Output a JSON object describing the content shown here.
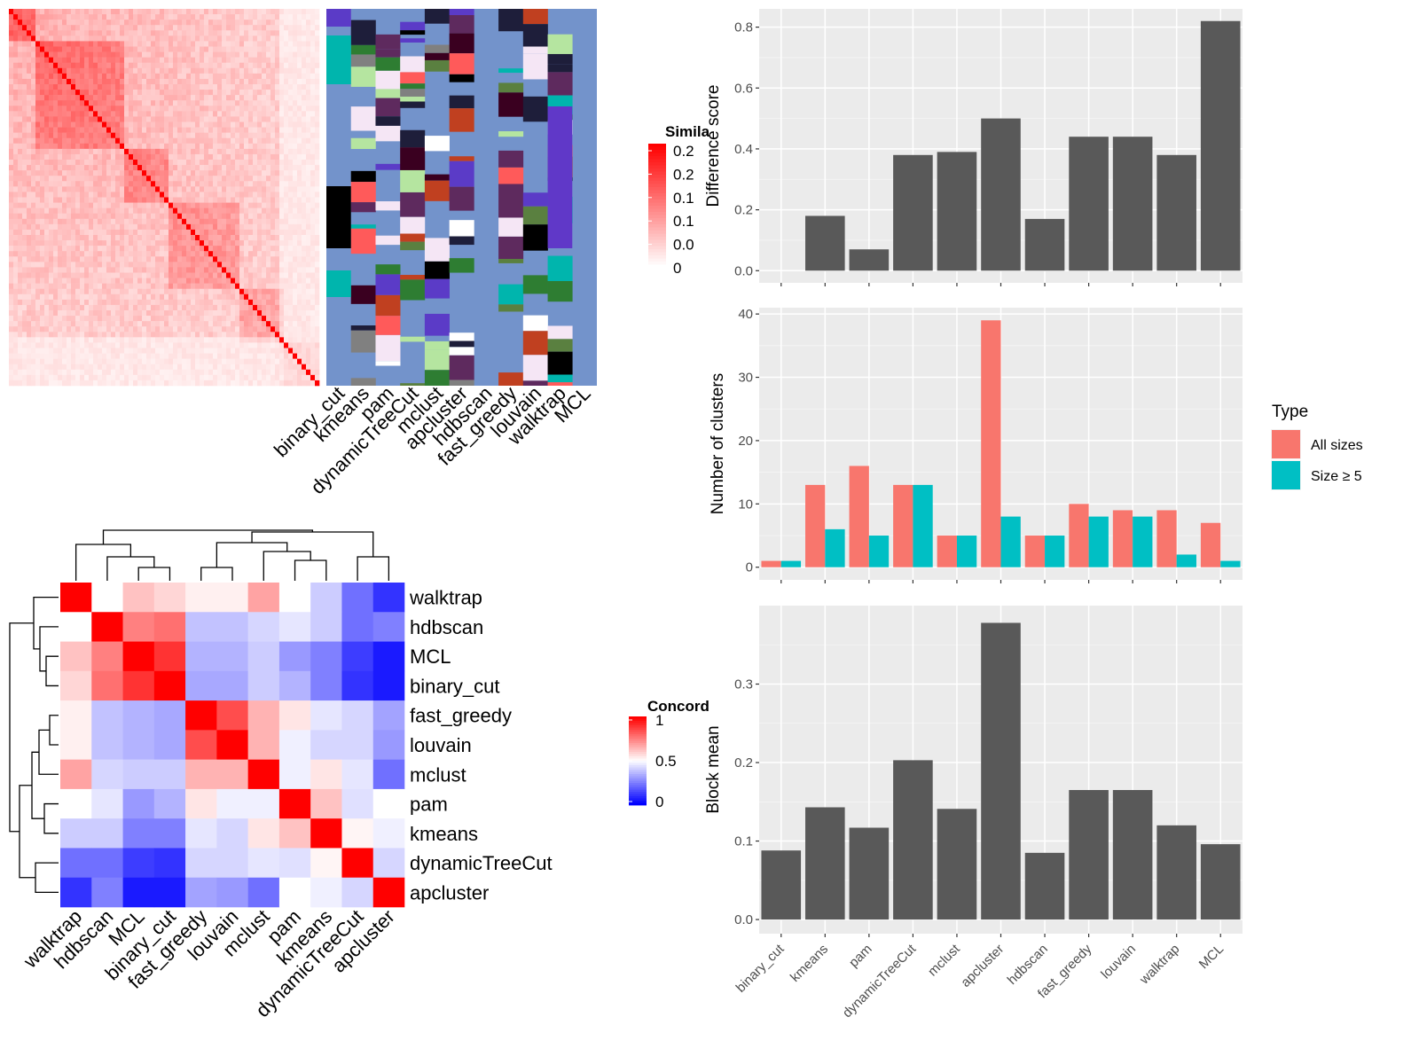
{
  "chart_data": [
    {
      "type": "heatmap",
      "panel": "similarity-matrix",
      "legend_title": "Simila",
      "legend_ticks": [
        "0.2",
        "0.2",
        "0.1",
        "0.1",
        "0.0",
        "0"
      ],
      "colors": {
        "low": "#ffffff",
        "high": "#ff0000"
      },
      "column_labels": [
        "binary_cut",
        "kmeans",
        "pam",
        "dynamicTreeCut",
        "mclust",
        "apcluster",
        "hdbscan",
        "fast_greedy",
        "louvain",
        "walktrap",
        "MCL"
      ]
    },
    {
      "type": "heatmap",
      "panel": "concordance-heatmap",
      "legend_title": "Concord",
      "legend_ticks": [
        "1",
        "0.5",
        "0"
      ],
      "colors": {
        "low": "#0000ff",
        "mid": "#ffffff",
        "high": "#ff0000"
      },
      "row_labels": [
        "walktrap",
        "hdbscan",
        "MCL",
        "binary_cut",
        "fast_greedy",
        "louvain",
        "mclust",
        "pam",
        "kmeans",
        "dynamicTreeCut",
        "apcluster"
      ],
      "col_labels": [
        "walktrap",
        "hdbscan",
        "MCL",
        "binary_cut",
        "fast_greedy",
        "louvain",
        "mclust",
        "pam",
        "kmeans",
        "dynamicTreeCut",
        "apcluster"
      ],
      "values": [
        [
          1.0,
          0.5,
          0.62,
          0.58,
          0.53,
          0.53,
          0.68,
          0.5,
          0.4,
          0.22,
          0.1
        ],
        [
          0.5,
          1.0,
          0.75,
          0.78,
          0.38,
          0.38,
          0.42,
          0.45,
          0.4,
          0.22,
          0.25
        ],
        [
          0.62,
          0.75,
          1.0,
          0.9,
          0.35,
          0.35,
          0.4,
          0.3,
          0.25,
          0.12,
          0.05
        ],
        [
          0.58,
          0.78,
          0.9,
          1.0,
          0.33,
          0.33,
          0.4,
          0.35,
          0.25,
          0.1,
          0.05
        ],
        [
          0.53,
          0.38,
          0.35,
          0.33,
          1.0,
          0.85,
          0.65,
          0.55,
          0.45,
          0.42,
          0.32
        ],
        [
          0.53,
          0.38,
          0.35,
          0.33,
          0.85,
          1.0,
          0.65,
          0.47,
          0.42,
          0.42,
          0.3
        ],
        [
          0.68,
          0.42,
          0.4,
          0.4,
          0.65,
          0.65,
          1.0,
          0.47,
          0.55,
          0.45,
          0.22
        ],
        [
          0.5,
          0.45,
          0.3,
          0.35,
          0.55,
          0.47,
          0.47,
          1.0,
          0.62,
          0.44,
          0.5
        ],
        [
          0.4,
          0.4,
          0.25,
          0.25,
          0.45,
          0.42,
          0.55,
          0.62,
          1.0,
          0.52,
          0.47
        ],
        [
          0.22,
          0.22,
          0.12,
          0.1,
          0.42,
          0.42,
          0.45,
          0.44,
          0.52,
          1.0,
          0.42
        ],
        [
          0.1,
          0.25,
          0.05,
          0.05,
          0.32,
          0.3,
          0.22,
          0.5,
          0.47,
          0.42,
          1.0
        ]
      ]
    },
    {
      "type": "bar",
      "panel": "difference-score",
      "categories": [
        "binary_cut",
        "kmeans",
        "pam",
        "dynamicTreeCut",
        "mclust",
        "apcluster",
        "hdbscan",
        "fast_greedy",
        "louvain",
        "walktrap",
        "MCL"
      ],
      "values": [
        0.0,
        0.18,
        0.07,
        0.38,
        0.39,
        0.5,
        0.17,
        0.44,
        0.44,
        0.38,
        0.82
      ],
      "ylabel": "Difference score",
      "yticks": [
        "0.0",
        "0.2",
        "0.4",
        "0.6",
        "0.8"
      ],
      "ylim": [
        -0.04,
        0.86
      ],
      "bar_color": "#595959"
    },
    {
      "type": "bar",
      "panel": "number-of-clusters",
      "categories": [
        "binary_cut",
        "kmeans",
        "pam",
        "dynamicTreeCut",
        "mclust",
        "apcluster",
        "hdbscan",
        "fast_greedy",
        "louvain",
        "walktrap",
        "MCL"
      ],
      "series": [
        {
          "name": "All sizes",
          "color": "#f8766d",
          "values": [
            1,
            13,
            16,
            13,
            5,
            39,
            5,
            10,
            9,
            9,
            7
          ]
        },
        {
          "name": "Size ≥ 5",
          "color": "#00bfc4",
          "values": [
            1,
            6,
            5,
            13,
            5,
            8,
            5,
            8,
            8,
            2,
            1
          ]
        }
      ],
      "ylabel": "Number of clusters",
      "yticks": [
        "0",
        "10",
        "20",
        "30",
        "40"
      ],
      "ylim": [
        -2,
        41
      ],
      "legend": {
        "title": "Type",
        "position": "right"
      }
    },
    {
      "type": "bar",
      "panel": "block-mean",
      "categories": [
        "binary_cut",
        "kmeans",
        "pam",
        "dynamicTreeCut",
        "mclust",
        "apcluster",
        "hdbscan",
        "fast_greedy",
        "louvain",
        "walktrap",
        "MCL"
      ],
      "values": [
        0.088,
        0.143,
        0.117,
        0.203,
        0.141,
        0.378,
        0.085,
        0.165,
        0.165,
        0.12,
        0.096
      ],
      "ylabel": "Block mean",
      "yticks": [
        "0.0",
        "0.1",
        "0.2",
        "0.3"
      ],
      "ylim": [
        -0.018,
        0.4
      ],
      "bar_color": "#595959"
    }
  ]
}
